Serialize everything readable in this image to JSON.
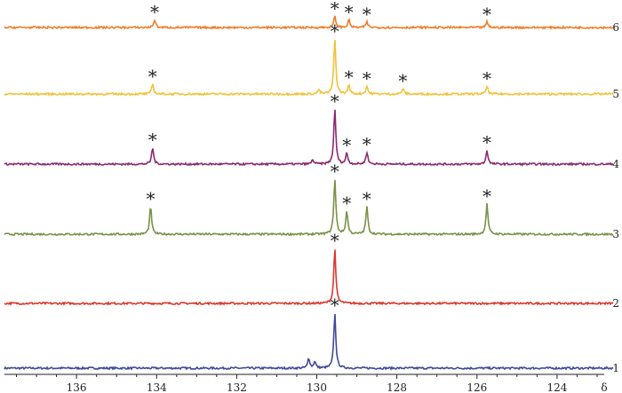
{
  "chart_data": {
    "type": "line",
    "title": "",
    "xlabel": "δ",
    "ylabel": "",
    "x_reversed": true,
    "xlim": [
      137.8,
      122.6
    ],
    "xticks": [
      136,
      134,
      132,
      130,
      128,
      126,
      124
    ],
    "peak_marker": "*",
    "grid": false,
    "legend": "none",
    "series": [
      {
        "name": "1",
        "color": "#3f4a97",
        "peaks": [
          {
            "x": 130.2,
            "h": 0.18,
            "starred": false
          },
          {
            "x": 130.05,
            "h": 0.12,
            "starred": false
          },
          {
            "x": 129.55,
            "h": 1.0,
            "starred": true
          }
        ]
      },
      {
        "name": "2",
        "color": "#d63a2e",
        "peaks": [
          {
            "x": 129.55,
            "h": 1.0,
            "starred": true
          }
        ]
      },
      {
        "name": "3",
        "color": "#7a9148",
        "peaks": [
          {
            "x": 134.15,
            "h": 0.5,
            "starred": true
          },
          {
            "x": 129.55,
            "h": 1.0,
            "starred": true
          },
          {
            "x": 129.25,
            "h": 0.42,
            "starred": true
          },
          {
            "x": 128.75,
            "h": 0.5,
            "starred": true
          },
          {
            "x": 125.75,
            "h": 0.55,
            "starred": true
          }
        ]
      },
      {
        "name": "4",
        "color": "#8a2a72",
        "peaks": [
          {
            "x": 134.1,
            "h": 0.3,
            "starred": true
          },
          {
            "x": 130.1,
            "h": 0.08,
            "starred": false
          },
          {
            "x": 129.55,
            "h": 1.0,
            "starred": true
          },
          {
            "x": 129.25,
            "h": 0.2,
            "starred": true
          },
          {
            "x": 128.75,
            "h": 0.22,
            "starred": true
          },
          {
            "x": 125.75,
            "h": 0.25,
            "starred": true
          }
        ]
      },
      {
        "name": "5",
        "color": "#f2c23a",
        "peaks": [
          {
            "x": 134.1,
            "h": 0.18,
            "starred": true
          },
          {
            "x": 129.95,
            "h": 0.08,
            "starred": false
          },
          {
            "x": 129.55,
            "h": 1.0,
            "starred": true
          },
          {
            "x": 129.2,
            "h": 0.16,
            "starred": true
          },
          {
            "x": 128.75,
            "h": 0.14,
            "starred": true
          },
          {
            "x": 127.85,
            "h": 0.1,
            "starred": true
          },
          {
            "x": 125.75,
            "h": 0.14,
            "starred": true
          }
        ]
      },
      {
        "name": "6",
        "color": "#ee7d2b",
        "peaks": [
          {
            "x": 134.05,
            "h": 0.14,
            "starred": true
          },
          {
            "x": 129.55,
            "h": 0.2,
            "starred": true
          },
          {
            "x": 129.2,
            "h": 0.14,
            "starred": true
          },
          {
            "x": 128.75,
            "h": 0.1,
            "starred": true
          },
          {
            "x": 125.75,
            "h": 0.1,
            "starred": true
          }
        ]
      }
    ]
  }
}
